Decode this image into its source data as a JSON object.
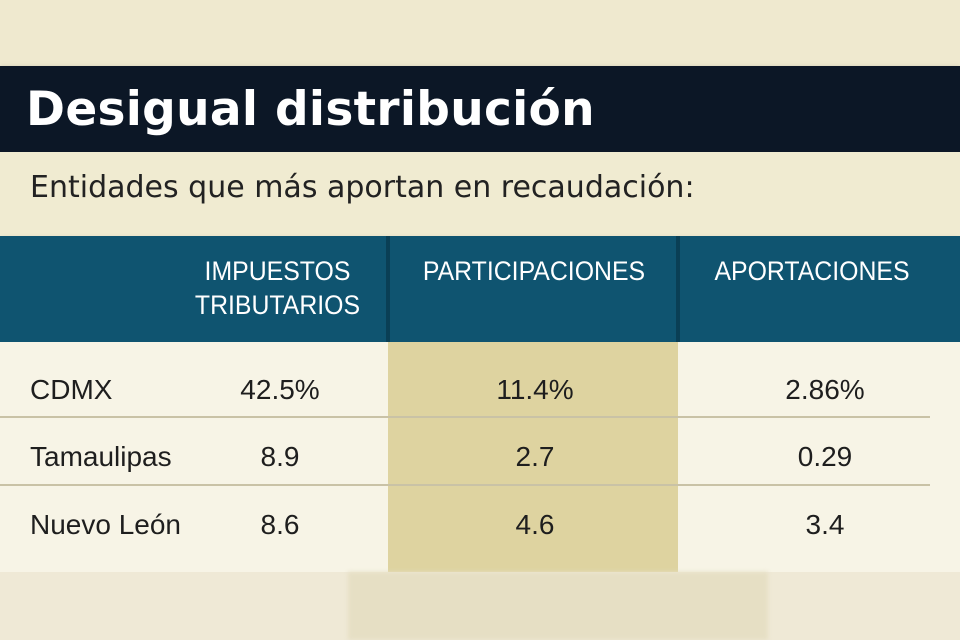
{
  "header": {
    "title": "Desigual distribución"
  },
  "subtitle": "Entidades que más aportan en recaudación:",
  "chart_data": {
    "type": "table",
    "columns": [
      "",
      "IMPUESTOS\nTRIBUTARIOS",
      "PARTICIPACIONES",
      "APORTACIONES"
    ],
    "rows": [
      {
        "entity": "CDMX",
        "impuestos": "42.5%",
        "participaciones": "11.4%",
        "aportaciones": "2.86%"
      },
      {
        "entity": "Tamaulipas",
        "impuestos": "8.9",
        "participaciones": "2.7",
        "aportaciones": "0.29"
      },
      {
        "entity": "Nuevo León",
        "impuestos": "8.6",
        "participaciones": "4.6",
        "aportaciones": "3.4"
      }
    ],
    "colors": {
      "header": "#0f5470",
      "highlight_column": "#ded3a0",
      "title_bar": "#0c1726"
    }
  }
}
